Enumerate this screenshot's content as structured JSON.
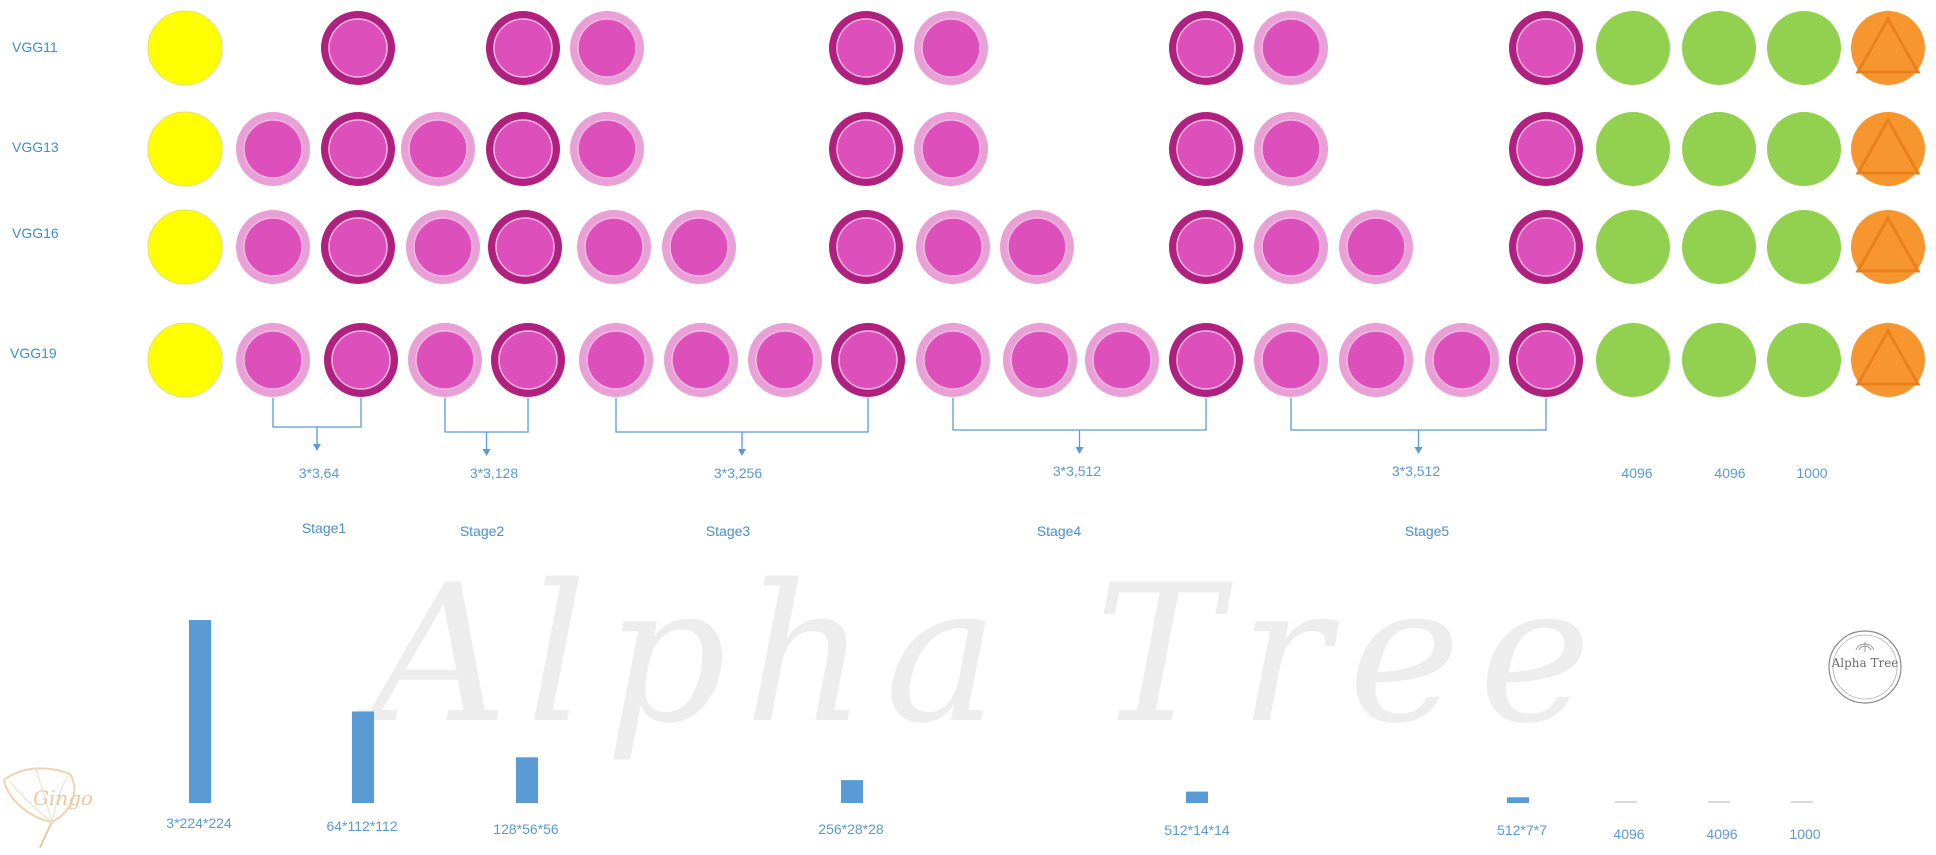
{
  "rows": [
    {
      "label": "VGG11",
      "nodes": [
        "input",
        "conv-pool",
        "conv-pool",
        "conv",
        "conv-pool",
        "conv",
        "conv-pool",
        "conv",
        "conv-pool",
        "fc",
        "fc",
        "fc",
        "softmax"
      ]
    },
    {
      "label": "VGG13",
      "nodes": [
        "input",
        "conv",
        "conv-pool",
        "conv",
        "conv-pool",
        "conv",
        "conv-pool",
        "conv",
        "conv-pool",
        "conv",
        "conv-pool",
        "fc",
        "fc",
        "fc",
        "softmax"
      ]
    },
    {
      "label": "VGG16",
      "nodes": [
        "input",
        "conv",
        "conv-pool",
        "conv",
        "conv-pool",
        "conv",
        "conv",
        "conv-pool",
        "conv",
        "conv",
        "conv-pool",
        "conv",
        "conv",
        "conv-pool",
        "fc",
        "fc",
        "fc",
        "softmax"
      ]
    },
    {
      "label": "VGG19",
      "nodes": [
        "input",
        "conv",
        "conv-pool",
        "conv",
        "conv-pool",
        "conv",
        "conv",
        "conv",
        "conv-pool",
        "conv",
        "conv",
        "conv",
        "conv-pool",
        "conv",
        "conv",
        "conv",
        "conv-pool",
        "fc",
        "fc",
        "fc",
        "softmax"
      ]
    }
  ],
  "kernels": [
    "3*3,64",
    "3*3,128",
    "3*3,256",
    "3*3,512",
    "3*3,512"
  ],
  "fc_sizes": [
    "4096",
    "4096",
    "1000"
  ],
  "stages": [
    "Stage1",
    "Stage2",
    "Stage3",
    "Stage4",
    "Stage5"
  ],
  "feature_maps": {
    "labels": [
      "3*224*224",
      "64*112*112",
      "128*56*56",
      "256*28*28",
      "512*14*14",
      "512*7*7",
      "4096",
      "4096",
      "1000"
    ],
    "relative_size": [
      1.0,
      0.5,
      0.25,
      0.125,
      0.0625,
      0.03125,
      0.001,
      0.001,
      0.001
    ]
  },
  "watermark": "Alpha Tree",
  "logo_text": "Gingo",
  "stamp_text": "Alpha Tree",
  "colors": {
    "input": "#ffff00",
    "conv_fill": "#dd4fbb",
    "conv_ring": "#e9a0d6",
    "pool_ring": "#b0207f",
    "fc": "#92d050",
    "softmax": "#f7962f",
    "accent": "#5b9bd5"
  }
}
